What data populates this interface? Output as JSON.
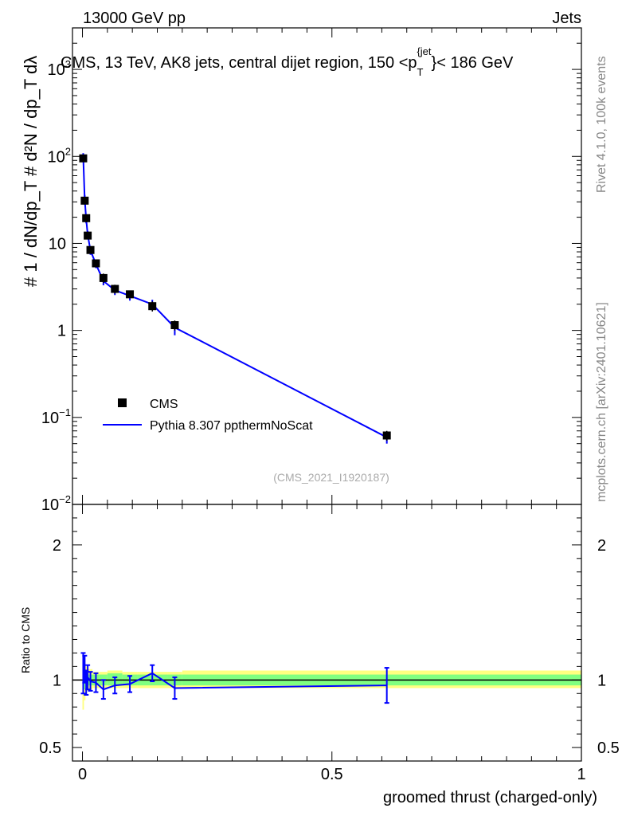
{
  "header": {
    "beam_label": "13000 GeV pp",
    "process_label": "Jets",
    "title_text": "CMS, 13 TeV, AK8 jets, central dijet region, 150 <p",
    "title_sub": "T",
    "title_sup": "{jet",
    "title_end": "}< 186 GeV"
  },
  "side_labels": {
    "rivet": "Rivet 4.1.0,  100k events",
    "mcplots": "mcplots.cern.ch [arXiv:2401.10621]"
  },
  "watermark": "(CMS_2021_I1920187)",
  "colors": {
    "data": "#000000",
    "mc": "#0000ff",
    "band_inner": "#80ff80",
    "band_outer": "#ffff80",
    "grid": "#000000"
  },
  "chart_data": [
    {
      "type": "scatter",
      "name": "main",
      "yscale": "log",
      "xlim": [
        -0.02,
        1.0
      ],
      "ylim": [
        0.01,
        3000
      ],
      "ylabel": "# 1 / dN/dp_T # d²N / dp_T dλ",
      "y_ticks": [
        {
          "value": 0.01,
          "base": "10",
          "exp": "−2"
        },
        {
          "value": 0.1,
          "base": "10",
          "exp": "−1"
        },
        {
          "value": 1,
          "base": "1",
          "exp": ""
        },
        {
          "value": 10,
          "base": "10",
          "exp": ""
        },
        {
          "value": 100,
          "base": "10",
          "exp": "2"
        },
        {
          "value": 1000,
          "base": "10",
          "exp": "3"
        }
      ],
      "legend": [
        {
          "label": "CMS",
          "kind": "marker"
        },
        {
          "label": "Pythia 8.307 ppthermNoScat",
          "kind": "line"
        }
      ],
      "legend_position": "lower-left",
      "series": [
        {
          "name": "CMS",
          "x": [
            0.0015,
            0.0045,
            0.0075,
            0.0105,
            0.016,
            0.027,
            0.042,
            0.065,
            0.095,
            0.14,
            0.185,
            0.61
          ],
          "y": [
            95,
            31,
            19.5,
            12.3,
            8.4,
            5.9,
            4.0,
            3.0,
            2.6,
            1.9,
            1.15,
            0.062
          ],
          "yerr_hi": [
            8,
            3,
            2,
            1.2,
            0.8,
            0.6,
            0.5,
            0.35,
            0.25,
            0.25,
            0.15,
            0.008
          ],
          "yerr_lo": [
            8,
            3,
            2,
            1.2,
            0.8,
            0.6,
            0.5,
            0.35,
            0.25,
            0.25,
            0.15,
            0.008
          ]
        },
        {
          "name": "Pythia 8.307 ppthermNoScat",
          "x": [
            0.0015,
            0.0045,
            0.0075,
            0.0105,
            0.016,
            0.027,
            0.042,
            0.065,
            0.095,
            0.14,
            0.185,
            0.61
          ],
          "y": [
            100,
            33,
            19.0,
            12.6,
            8.3,
            5.8,
            3.7,
            2.9,
            2.5,
            2.0,
            1.08,
            0.059
          ],
          "yerr_hi": [
            9,
            3,
            2,
            1.3,
            0.9,
            0.6,
            0.4,
            0.35,
            0.3,
            0.25,
            0.2,
            0.009
          ],
          "yerr_lo": [
            9,
            3,
            2,
            1.3,
            0.9,
            0.6,
            0.4,
            0.35,
            0.3,
            0.25,
            0.2,
            0.009
          ]
        }
      ]
    },
    {
      "type": "line",
      "name": "ratio",
      "xlim": [
        -0.02,
        1.0
      ],
      "ylim": [
        0.4,
        2.3
      ],
      "xlabel": "groomed thrust (charged-only)",
      "ylabel": "Ratio to CMS",
      "x_ticks": [
        {
          "value": 0,
          "label": "0"
        },
        {
          "value": 0.5,
          "label": "0.5"
        },
        {
          "value": 1,
          "label": "1"
        }
      ],
      "y_ticks": [
        {
          "value": 0.5,
          "label": "0.5"
        },
        {
          "value": 1,
          "label": "1"
        },
        {
          "value": 2,
          "label": "2"
        }
      ],
      "band_edges": [
        0.0,
        0.003,
        0.006,
        0.009,
        0.012,
        0.02,
        0.034,
        0.05,
        0.08,
        0.11,
        0.17,
        0.2,
        1.0
      ],
      "band_inner_hi": [
        1.08,
        1.07,
        1.06,
        1.05,
        1.04,
        1.04,
        1.04,
        1.05,
        1.04,
        1.04,
        1.04,
        1.04
      ],
      "band_inner_lo": [
        0.92,
        0.93,
        0.94,
        0.95,
        0.96,
        0.96,
        0.96,
        0.96,
        0.96,
        0.96,
        0.96,
        0.96
      ],
      "band_outer_hi": [
        1.2,
        1.15,
        1.1,
        1.09,
        1.08,
        1.06,
        1.06,
        1.07,
        1.06,
        1.06,
        1.06,
        1.07
      ],
      "band_outer_lo": [
        0.78,
        0.85,
        0.9,
        0.92,
        0.93,
        0.94,
        0.94,
        0.94,
        0.94,
        0.94,
        0.94,
        0.94
      ],
      "series": [
        {
          "name": "Pythia 8.307 ppthermNoScat",
          "x": [
            0.0015,
            0.0045,
            0.0075,
            0.0105,
            0.016,
            0.027,
            0.042,
            0.065,
            0.095,
            0.14,
            0.185,
            0.61
          ],
          "y": [
            1.05,
            1.08,
            0.98,
            1.02,
            0.99,
            0.98,
            0.93,
            0.96,
            0.97,
            1.05,
            0.94,
            0.96
          ],
          "yerr": [
            0.15,
            0.1,
            0.09,
            0.09,
            0.07,
            0.07,
            0.07,
            0.06,
            0.06,
            0.06,
            0.08,
            0.13
          ]
        }
      ]
    }
  ]
}
